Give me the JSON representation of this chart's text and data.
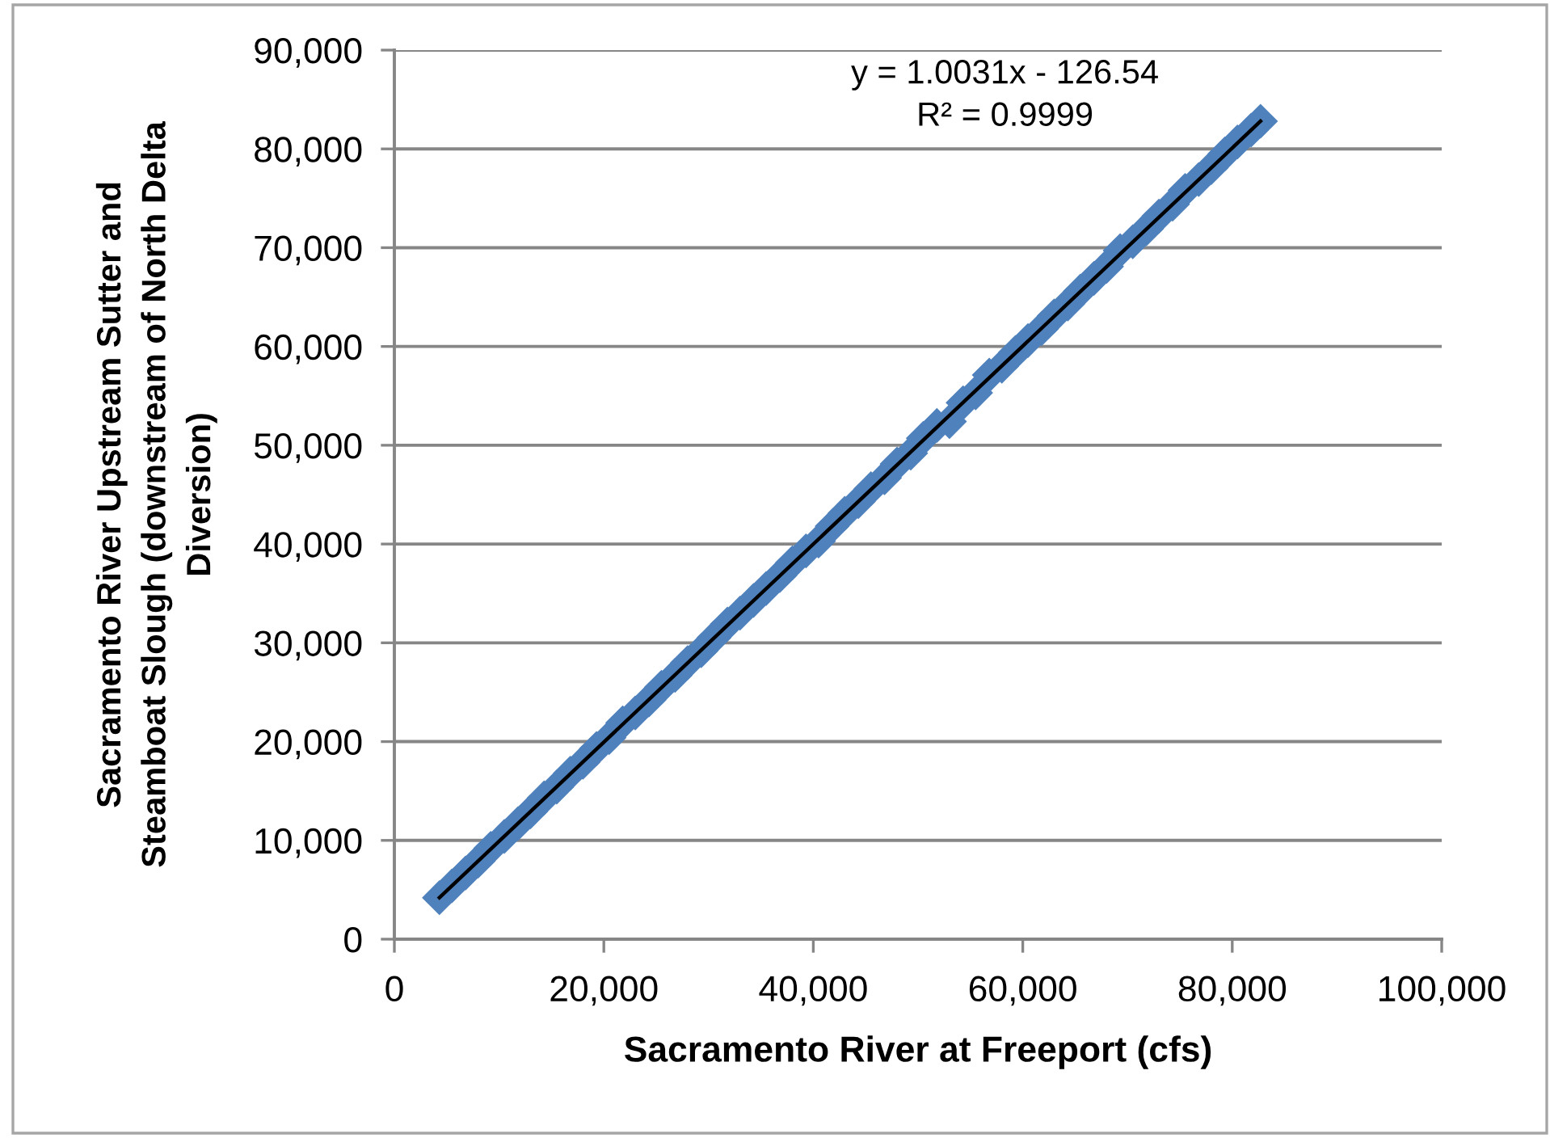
{
  "chart_data": {
    "type": "scatter",
    "xlabel": "Sacramento River at Freeport (cfs)",
    "ylabel": "Sacramento River Upstream Sutter and\nSteamboat Slough (downstream of North Delta\nDiversion)",
    "annotations": [
      "y = 1.0031x - 126.54",
      "R² = 0.9999"
    ],
    "xlim": [
      0,
      100000
    ],
    "ylim": [
      0,
      90000
    ],
    "xticks": [
      0,
      {
        "value": 20000,
        "label": "20,000"
      },
      {
        "value": 40000,
        "label": "40,000"
      },
      {
        "value": 60000,
        "label": "60,000"
      },
      {
        "value": 80000,
        "label": "80,000"
      },
      {
        "value": 100000,
        "label": "100,000"
      }
    ],
    "yticks": [
      0,
      {
        "value": 10000,
        "label": "10,000"
      },
      {
        "value": 20000,
        "label": "20,000"
      },
      {
        "value": 30000,
        "label": "30,000"
      },
      {
        "value": 40000,
        "label": "40,000"
      },
      {
        "value": 50000,
        "label": "50,000"
      },
      {
        "value": 60000,
        "label": "60,000"
      },
      {
        "value": 70000,
        "label": "70,000"
      },
      {
        "value": 80000,
        "label": "80,000"
      },
      {
        "value": 90000,
        "label": "90,000"
      }
    ],
    "grid": "y",
    "marker": "diamond",
    "series": [
      {
        "color": "#4f81bd",
        "x": [
          4300,
          5500,
          6800,
          8000,
          9200,
          10500,
          11800,
          13000,
          14300,
          15500,
          16800,
          18000,
          19300,
          20500,
          21800,
          23000,
          24300,
          25500,
          26800,
          28000,
          29300,
          30500,
          31800,
          33000,
          34300,
          35500,
          36800,
          38000,
          39300,
          40500,
          41800,
          43000,
          44300,
          45500,
          46800,
          48000,
          49300,
          50500,
          51800,
          53000,
          54300,
          55500,
          56800,
          58000,
          59300,
          60500,
          61800,
          63000,
          64300,
          65500,
          66800,
          68000,
          69300,
          70500,
          71800,
          73000,
          74300,
          75500,
          76800,
          78000,
          79300,
          80500,
          81800,
          82700
        ],
        "values": [
          4200,
          5400,
          6700,
          7900,
          9200,
          10400,
          11700,
          12900,
          14300,
          15400,
          16800,
          17900,
          19300,
          20400,
          21900,
          22900,
          24200,
          25500,
          26700,
          28000,
          29200,
          30500,
          31900,
          33000,
          34300,
          35500,
          36800,
          38100,
          39300,
          40300,
          41800,
          43100,
          44300,
          45600,
          46700,
          48100,
          49200,
          50700,
          52000,
          52400,
          54300,
          55300,
          57100,
          58000,
          59400,
          60600,
          61800,
          63100,
          64300,
          65600,
          66900,
          68100,
          69700,
          70600,
          71900,
          73200,
          74400,
          75800,
          76900,
          78100,
          79500,
          80700,
          81900,
          82800
        ]
      },
      {
        "type": "line",
        "color": "#000000",
        "marker": "none",
        "line_style": "solid",
        "x": [
          4300,
          82700
        ],
        "values": [
          4200,
          82800
        ]
      }
    ]
  }
}
